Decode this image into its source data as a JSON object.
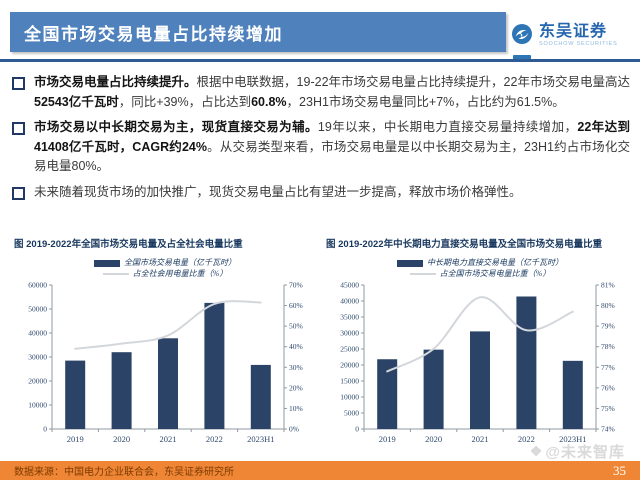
{
  "header": {
    "title": "全国市场交易电量占比持续增加",
    "logo": {
      "cn": "东吴证券",
      "en": "SOOCHOW SECURITIES"
    }
  },
  "bullets": [
    {
      "segments": [
        {
          "text": "市场交易电量占比持续提升。",
          "bold": true
        },
        {
          "text": "根据中电联数据，19-22年市场交易电量占比持续提升，22年市场交易电量高达",
          "bold": false
        },
        {
          "text": "52543亿千瓦时",
          "bold": true
        },
        {
          "text": "，同比+39%，占比达到",
          "bold": false
        },
        {
          "text": "60.8%",
          "bold": true
        },
        {
          "text": "，23H1市场交易电量同比+7%，占比约为61.5%。",
          "bold": false
        }
      ]
    },
    {
      "segments": [
        {
          "text": "市场交易以中长期交易为主，现货直接交易为辅。",
          "bold": true
        },
        {
          "text": "19年以来，中长期电力直接交易量持续增加，",
          "bold": false
        },
        {
          "text": "22年达到41408亿千瓦时，CAGR约24%",
          "bold": true
        },
        {
          "text": "。从交易类型来看，市场交易电量是以中长期交易为主，23H1约占市场化交易电量80%。",
          "bold": false
        }
      ]
    },
    {
      "segments": [
        {
          "text": "未来随着现货市场的加快推广，现货交易电量占比有望进一步提高，释放市场价格弹性。",
          "bold": false
        }
      ]
    }
  ],
  "chart_data": [
    {
      "type": "bar",
      "title": "图  2019-2022年全国市场交易电量及占全社会电量比重",
      "categories": [
        "2019",
        "2020",
        "2021",
        "2022",
        "2023H1"
      ],
      "series": [
        {
          "name": "全国市场交易电量（亿千瓦时）",
          "type": "bar",
          "axis": "left",
          "values": [
            28500,
            32000,
            37800,
            52543,
            26700
          ],
          "color": "#2B4366"
        },
        {
          "name": "占全社会用电量比重（%）",
          "type": "line",
          "axis": "right",
          "values": [
            39.0,
            41.5,
            45.5,
            60.8,
            61.5
          ],
          "color": "#D3D7DC"
        }
      ],
      "left_axis": {
        "min": 0,
        "max": 60000,
        "step": 10000,
        "suffix": ""
      },
      "right_axis": {
        "min": 0,
        "max": 70,
        "step": 10,
        "suffix": "%"
      },
      "grid": false,
      "legend_position": "top"
    },
    {
      "type": "bar",
      "title": "图  2019-2022年中长期电力直接交易电量及全国市场交易电量比重",
      "categories": [
        "2019",
        "2020",
        "2021",
        "2022",
        "2023H1"
      ],
      "series": [
        {
          "name": "中长期电力直接交易电量（亿千瓦时）",
          "type": "bar",
          "axis": "left",
          "values": [
            21800,
            24800,
            30500,
            41408,
            21300
          ],
          "color": "#2B4366"
        },
        {
          "name": "占全国市场交易电量比重（%）",
          "type": "line",
          "axis": "right",
          "values": [
            76.8,
            77.9,
            80.4,
            78.8,
            79.7
          ],
          "color": "#D3D7DC"
        }
      ],
      "left_axis": {
        "min": 0,
        "max": 45000,
        "step": 5000,
        "suffix": ""
      },
      "right_axis": {
        "min": 74,
        "max": 81,
        "step": 1,
        "suffix": "%"
      },
      "grid": false,
      "legend_position": "top"
    }
  ],
  "watermark": {
    "icon": "❖",
    "text": "@未来智库"
  },
  "footer": {
    "source": "数据来源：中国电力企业联合会，东吴证券研究所",
    "page": "35"
  },
  "colors": {
    "header_blue": "#4F81BD",
    "divider_blue": "#2F5B94",
    "bar_navy": "#2B4366",
    "trend_gray": "#D3D7DC",
    "footer_orange": "#EF8636",
    "footer_text_brown": "#7C3A00",
    "title_navy": "#17375E"
  }
}
